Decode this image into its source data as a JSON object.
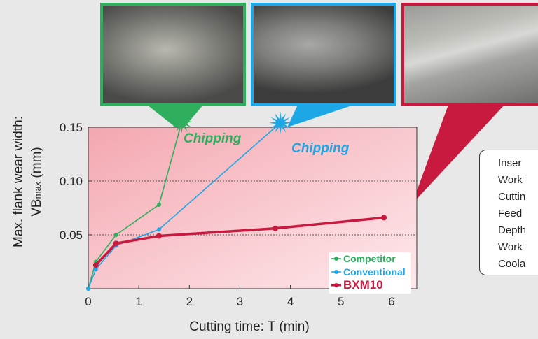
{
  "chart_data": {
    "type": "line",
    "xlabel": "Cutting time: T (min)",
    "ylabel_line1": "Max. flank wear width:",
    "ylabel_line2_prefix": "VB",
    "ylabel_line2_sub": "max",
    "ylabel_line2_suffix": " (mm)",
    "xlim": [
      0,
      6.5
    ],
    "ylim": [
      0,
      0.15
    ],
    "xticks": [
      0,
      1,
      2,
      3,
      4,
      5,
      6
    ],
    "yticks": [
      0.05,
      0.1,
      0.15
    ],
    "ytick_labels": [
      "0.05",
      "0.10",
      "0.15"
    ],
    "grid": "horizontal dotted",
    "legend_position": "lower-right",
    "series": [
      {
        "name": "Competitor",
        "color": "#2fae5e",
        "x": [
          0,
          0.15,
          0.55,
          1.4,
          1.85
        ],
        "y": [
          0,
          0.025,
          0.05,
          0.078,
          0.155
        ],
        "marker_count": 4,
        "end_label": "Chipping"
      },
      {
        "name": "Conventional",
        "color": "#1ea7e6",
        "x": [
          0,
          0.15,
          0.55,
          1.4,
          3.8
        ],
        "y": [
          0,
          0.018,
          0.04,
          0.055,
          0.154
        ],
        "marker_count": 4,
        "end_label": "Chipping"
      },
      {
        "name": "BXM10",
        "color": "#c8193f",
        "x": [
          0.15,
          0.55,
          1.4,
          3.7,
          5.85
        ],
        "y": [
          0.022,
          0.042,
          0.049,
          0.056,
          0.066
        ],
        "marker_count": 5
      }
    ]
  },
  "conditions": {
    "lines": [
      "Inser",
      "Work",
      "Cuttin",
      "Feed",
      "Depth",
      "Work",
      "Coola"
    ]
  },
  "colors": {
    "competitor": "#2fae5e",
    "conventional": "#1ea7e6",
    "bxm10": "#c8193f",
    "plot_bg_top": "#f2a3ac",
    "plot_bg_bottom": "#fbe3e6"
  }
}
